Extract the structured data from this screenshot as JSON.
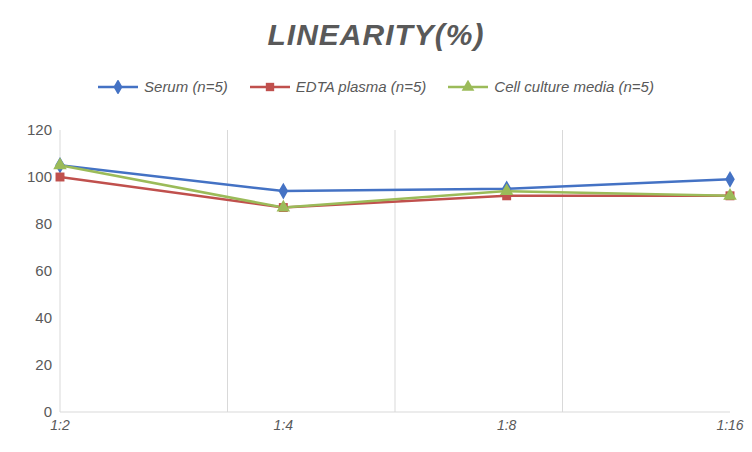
{
  "chart_data": {
    "type": "line",
    "title": "LINEARITY(%)",
    "categories": [
      "1:2",
      "1:4",
      "1:8",
      "1:16"
    ],
    "series": [
      {
        "name": "Serum (n=5)",
        "color": "#4472c4",
        "marker": "diamond",
        "values": [
          105,
          94,
          95,
          99
        ]
      },
      {
        "name": "EDTA plasma (n=5)",
        "color": "#c0504d",
        "marker": "square",
        "values": [
          100,
          87,
          92,
          92
        ]
      },
      {
        "name": "Cell culture media (n=5)",
        "color": "#9bbb59",
        "marker": "triangle",
        "values": [
          105,
          87,
          94,
          92
        ]
      }
    ],
    "ylim": [
      0,
      120
    ],
    "yticks": [
      0,
      20,
      40,
      60,
      80,
      100,
      120
    ],
    "grid": true,
    "legend": "top"
  }
}
